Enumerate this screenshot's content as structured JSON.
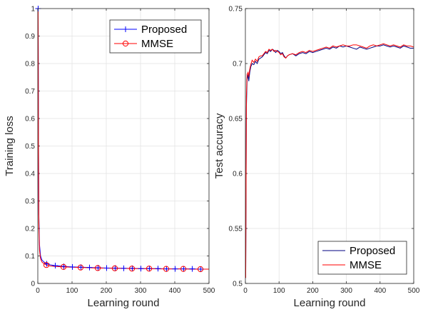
{
  "chart_data": [
    {
      "type": "line",
      "xlabel": "Learning round",
      "ylabel": "Training loss",
      "xlim": [
        0,
        500
      ],
      "ylim": [
        0,
        1
      ],
      "xticks": [
        "0",
        "100",
        "200",
        "300",
        "400",
        "500"
      ],
      "yticks": [
        "0",
        "0.1",
        "0.2",
        "0.3",
        "0.4",
        "0.5",
        "0.6",
        "0.7",
        "0.8",
        "0.9",
        "1"
      ],
      "grid": true,
      "legend_position": "top-right",
      "series": [
        {
          "name": "Proposed",
          "color": "#0000ff",
          "marker": "plus",
          "x": [
            1,
            2,
            3,
            5,
            8,
            12,
            18,
            25,
            35,
            50,
            75,
            100,
            125,
            150,
            175,
            200,
            225,
            250,
            275,
            300,
            325,
            350,
            375,
            400,
            425,
            450,
            475,
            500
          ],
          "y": [
            1.0,
            0.55,
            0.25,
            0.14,
            0.1,
            0.085,
            0.078,
            0.072,
            0.068,
            0.065,
            0.062,
            0.06,
            0.059,
            0.058,
            0.057,
            0.056,
            0.056,
            0.055,
            0.055,
            0.054,
            0.054,
            0.054,
            0.053,
            0.053,
            0.053,
            0.053,
            0.052,
            0.052
          ]
        },
        {
          "name": "MMSE",
          "color": "#ff0000",
          "marker": "circle",
          "x": [
            1,
            2,
            3,
            5,
            8,
            12,
            18,
            25,
            35,
            50,
            75,
            100,
            125,
            150,
            175,
            200,
            225,
            250,
            275,
            300,
            325,
            350,
            375,
            400,
            425,
            450,
            475,
            500
          ],
          "y": [
            1.0,
            0.5,
            0.22,
            0.12,
            0.09,
            0.078,
            0.072,
            0.067,
            0.064,
            0.062,
            0.06,
            0.059,
            0.058,
            0.057,
            0.056,
            0.056,
            0.055,
            0.055,
            0.054,
            0.054,
            0.054,
            0.053,
            0.053,
            0.053,
            0.053,
            0.052,
            0.052,
            0.052
          ],
          "marker_x": [
            25,
            75,
            125,
            175,
            225,
            275,
            325,
            375,
            425,
            475
          ]
        }
      ]
    },
    {
      "type": "line",
      "xlabel": "Learning round",
      "ylabel": "Test accuracy",
      "xlim": [
        0,
        500
      ],
      "ylim": [
        0.5,
        0.75
      ],
      "xticks": [
        "0",
        "100",
        "200",
        "300",
        "400",
        "500"
      ],
      "yticks": [
        "0.5",
        "0.55",
        "0.6",
        "0.65",
        "0.7",
        "0.75"
      ],
      "grid": true,
      "legend_position": "bottom-right",
      "series": [
        {
          "name": "Proposed",
          "color": "#000080",
          "x": [
            1,
            3,
            5,
            8,
            10,
            13,
            16,
            20,
            25,
            30,
            35,
            40,
            45,
            50,
            55,
            60,
            65,
            70,
            75,
            80,
            85,
            90,
            95,
            100,
            105,
            110,
            115,
            120,
            125,
            130,
            140,
            150,
            160,
            170,
            180,
            190,
            200,
            210,
            220,
            230,
            240,
            250,
            260,
            270,
            280,
            290,
            300,
            310,
            320,
            330,
            340,
            350,
            360,
            370,
            380,
            390,
            400,
            410,
            420,
            430,
            440,
            450,
            460,
            470,
            480,
            490,
            500
          ],
          "y": [
            0.505,
            0.66,
            0.685,
            0.69,
            0.684,
            0.692,
            0.697,
            0.7,
            0.699,
            0.702,
            0.7,
            0.704,
            0.705,
            0.706,
            0.708,
            0.71,
            0.709,
            0.712,
            0.711,
            0.713,
            0.712,
            0.71,
            0.712,
            0.711,
            0.709,
            0.71,
            0.707,
            0.705,
            0.707,
            0.708,
            0.709,
            0.707,
            0.709,
            0.71,
            0.709,
            0.711,
            0.71,
            0.711,
            0.712,
            0.713,
            0.714,
            0.713,
            0.715,
            0.714,
            0.716,
            0.715,
            0.716,
            0.715,
            0.714,
            0.713,
            0.715,
            0.714,
            0.713,
            0.714,
            0.715,
            0.716,
            0.716,
            0.717,
            0.716,
            0.715,
            0.716,
            0.715,
            0.714,
            0.716,
            0.715,
            0.714,
            0.714
          ]
        },
        {
          "name": "MMSE",
          "color": "#ff0000",
          "x": [
            1,
            3,
            5,
            8,
            10,
            13,
            16,
            20,
            25,
            30,
            35,
            40,
            45,
            50,
            55,
            60,
            65,
            70,
            75,
            80,
            85,
            90,
            95,
            100,
            105,
            110,
            115,
            120,
            125,
            130,
            140,
            150,
            160,
            170,
            180,
            190,
            200,
            210,
            220,
            230,
            240,
            250,
            260,
            270,
            280,
            290,
            300,
            310,
            320,
            330,
            340,
            350,
            360,
            370,
            380,
            390,
            400,
            410,
            420,
            430,
            440,
            450,
            460,
            470,
            480,
            490,
            500
          ],
          "y": [
            0.505,
            0.67,
            0.69,
            0.692,
            0.688,
            0.695,
            0.699,
            0.703,
            0.701,
            0.704,
            0.702,
            0.706,
            0.707,
            0.707,
            0.709,
            0.711,
            0.71,
            0.713,
            0.712,
            0.713,
            0.711,
            0.712,
            0.711,
            0.71,
            0.708,
            0.709,
            0.706,
            0.705,
            0.707,
            0.708,
            0.709,
            0.708,
            0.71,
            0.711,
            0.71,
            0.712,
            0.711,
            0.712,
            0.713,
            0.714,
            0.715,
            0.714,
            0.716,
            0.715,
            0.716,
            0.717,
            0.716,
            0.716,
            0.717,
            0.717,
            0.716,
            0.715,
            0.714,
            0.716,
            0.717,
            0.716,
            0.717,
            0.718,
            0.717,
            0.716,
            0.717,
            0.716,
            0.715,
            0.717,
            0.716,
            0.716,
            0.715
          ]
        }
      ]
    }
  ]
}
